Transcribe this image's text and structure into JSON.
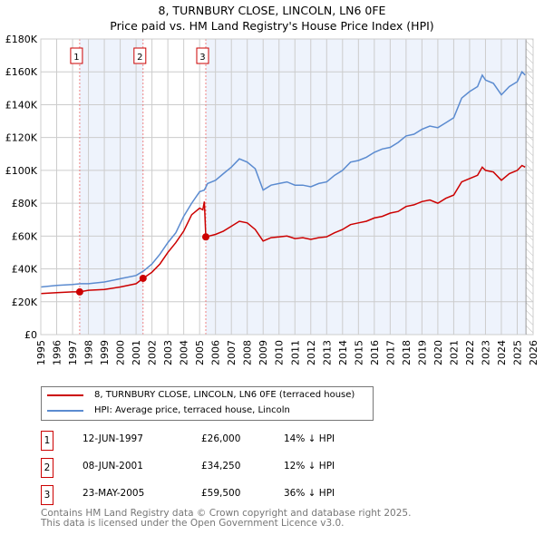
{
  "chart_data": {
    "type": "line",
    "title": "8, TURNBURY CLOSE, LINCOLN, LN6 0FE",
    "subtitle": "Price paid vs. HM Land Registry's House Price Index (HPI)",
    "xlim": [
      1995,
      2026
    ],
    "ylim": [
      0,
      180000
    ],
    "x_ticks": [
      "1995",
      "1996",
      "1997",
      "1998",
      "1999",
      "2000",
      "2001",
      "2002",
      "2003",
      "2004",
      "2005",
      "2006",
      "2007",
      "2008",
      "2009",
      "2010",
      "2011",
      "2012",
      "2013",
      "2014",
      "2015",
      "2016",
      "2017",
      "2018",
      "2019",
      "2020",
      "2021",
      "2022",
      "2023",
      "2024",
      "2025",
      "2026"
    ],
    "y_ticks": [
      {
        "v": 0,
        "label": "£0"
      },
      {
        "v": 20000,
        "label": "£20K"
      },
      {
        "v": 40000,
        "label": "£40K"
      },
      {
        "v": 60000,
        "label": "£60K"
      },
      {
        "v": 80000,
        "label": "£80K"
      },
      {
        "v": 100000,
        "label": "£100K"
      },
      {
        "v": 120000,
        "label": "£120K"
      },
      {
        "v": 140000,
        "label": "£140K"
      },
      {
        "v": 160000,
        "label": "£160K"
      },
      {
        "v": 180000,
        "label": "£180K"
      }
    ],
    "grid": true,
    "data_end": 2025.55,
    "series": [
      {
        "name": "8, TURNBURY CLOSE, LINCOLN, LN6 0FE (terraced house)",
        "color": "#cc0000",
        "x": [
          1995,
          1996,
          1997,
          1997.45,
          1998,
          1999,
          2000,
          2001,
          2001.44,
          2002,
          2002.5,
          2003,
          2003.5,
          2004,
          2004.5,
          2005,
          2005.2,
          2005.3,
          2005.39,
          2006,
          2006.5,
          2007,
          2007.5,
          2008,
          2008.5,
          2009,
          2009.5,
          2010,
          2010.5,
          2011,
          2011.5,
          2012,
          2012.5,
          2013,
          2013.5,
          2014,
          2014.5,
          2015,
          2015.5,
          2016,
          2016.5,
          2017,
          2017.5,
          2018,
          2018.5,
          2019,
          2019.5,
          2020,
          2020.5,
          2021,
          2021.5,
          2022,
          2022.5,
          2022.8,
          2023,
          2023.5,
          2024,
          2024.5,
          2025,
          2025.3,
          2025.5
        ],
        "y": [
          25000,
          25500,
          26000,
          26000,
          27000,
          27500,
          29000,
          31000,
          34250,
          38000,
          43000,
          50000,
          56000,
          63000,
          73000,
          77000,
          76000,
          81000,
          59500,
          61000,
          63000,
          66000,
          69000,
          68000,
          64000,
          57000,
          59000,
          59500,
          60000,
          58500,
          59000,
          58000,
          59000,
          59500,
          62000,
          64000,
          67000,
          68000,
          69000,
          71000,
          72000,
          74000,
          75000,
          78000,
          79000,
          81000,
          82000,
          80000,
          83000,
          85000,
          93000,
          95000,
          97000,
          102000,
          100000,
          99000,
          94000,
          98000,
          100000,
          103000,
          102000
        ]
      },
      {
        "name": "HPI: Average price, terraced house, Lincoln",
        "color": "#5b8bd0",
        "x": [
          1995,
          1996,
          1997,
          1997.5,
          1998,
          1999,
          2000,
          2001,
          2001.5,
          2002,
          2002.5,
          2003,
          2003.5,
          2004,
          2004.5,
          2005,
          2005.3,
          2005.5,
          2006,
          2006.5,
          2007,
          2007.5,
          2008,
          2008.5,
          2009,
          2009.5,
          2010,
          2010.5,
          2011,
          2011.5,
          2012,
          2012.5,
          2013,
          2013.5,
          2014,
          2014.5,
          2015,
          2015.5,
          2016,
          2016.5,
          2017,
          2017.5,
          2018,
          2018.5,
          2019,
          2019.5,
          2020,
          2020.5,
          2021,
          2021.5,
          2022,
          2022.5,
          2022.8,
          2023,
          2023.5,
          2024,
          2024.5,
          2025,
          2025.3,
          2025.5
        ],
        "y": [
          29000,
          30000,
          30500,
          31000,
          31000,
          32000,
          34000,
          36000,
          39000,
          43000,
          49000,
          56000,
          62000,
          72000,
          80000,
          87000,
          88000,
          92000,
          94000,
          98000,
          102000,
          107000,
          105000,
          101000,
          88000,
          91000,
          92000,
          93000,
          91000,
          91000,
          90000,
          92000,
          93000,
          97000,
          100000,
          105000,
          106000,
          108000,
          111000,
          113000,
          114000,
          117000,
          121000,
          122000,
          125000,
          127000,
          126000,
          129000,
          132000,
          144000,
          148000,
          151000,
          158000,
          155000,
          153000,
          146000,
          151000,
          154000,
          160000,
          158000
        ]
      }
    ],
    "sales": [
      {
        "id": "1",
        "x": 1997.45,
        "y": 26000
      },
      {
        "id": "2",
        "x": 2001.44,
        "y": 34250
      },
      {
        "id": "3",
        "x": 2005.39,
        "y": 59500
      }
    ]
  },
  "header": {
    "title": "8, TURNBURY CLOSE, LINCOLN, LN6 0FE",
    "subtitle": "Price paid vs. HM Land Registry's House Price Index (HPI)"
  },
  "legend": {
    "property": "8, TURNBURY CLOSE, LINCOLN, LN6 0FE (terraced house)",
    "hpi": "HPI: Average price, terraced house, Lincoln",
    "property_color": "#cc0000",
    "hpi_color": "#5b8bd0"
  },
  "sales_table": [
    {
      "num": "1",
      "date": "12-JUN-1997",
      "price": "£26,000",
      "hpi": "14% ↓ HPI"
    },
    {
      "num": "2",
      "date": "08-JUN-2001",
      "price": "£34,250",
      "hpi": "12% ↓ HPI"
    },
    {
      "num": "3",
      "date": "23-MAY-2005",
      "price": "£59,500",
      "hpi": "36% ↓ HPI"
    }
  ],
  "footer": {
    "line1": "Contains HM Land Registry data © Crown copyright and database right 2025.",
    "line2": "This data is licensed under the Open Government Licence v3.0."
  }
}
